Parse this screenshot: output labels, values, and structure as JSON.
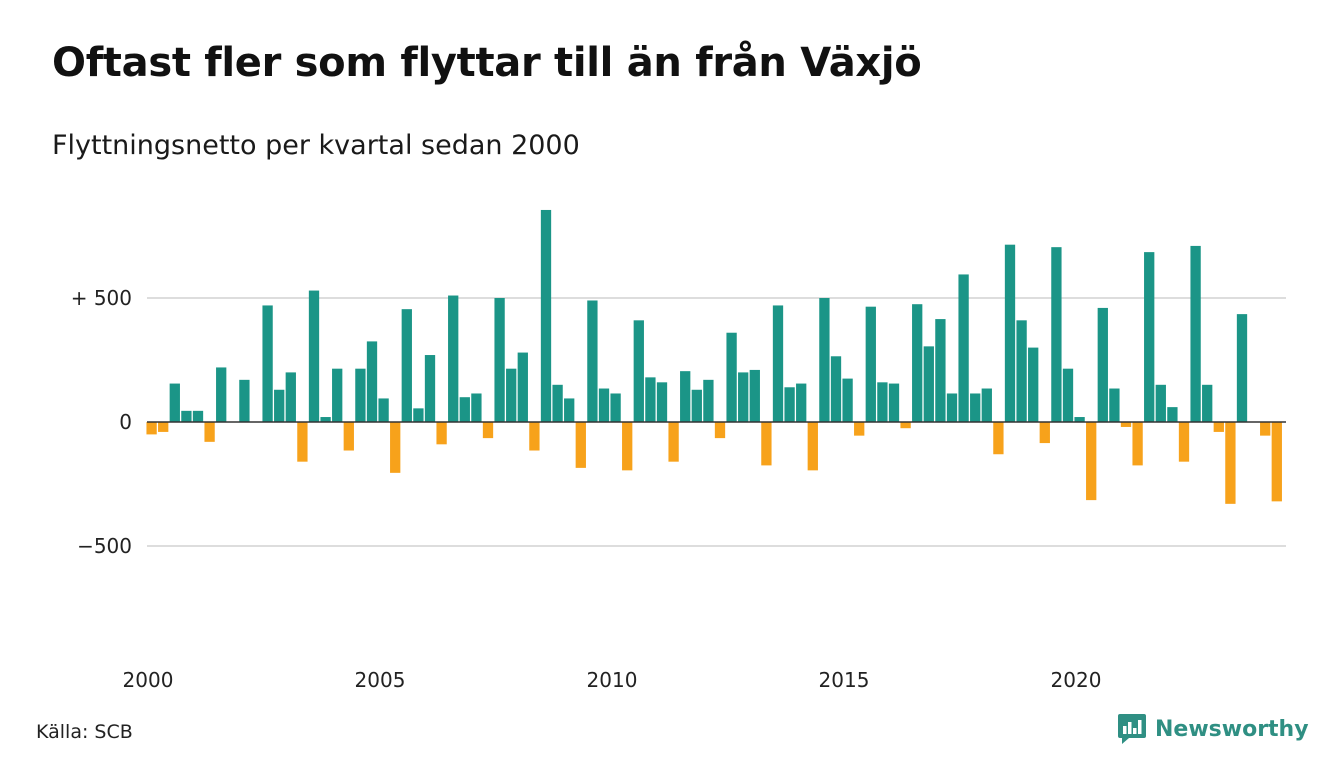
{
  "header": {
    "title": "Oftast fler som flyttar till än från Växjö",
    "subtitle": "Flyttningsnetto per kvartal sedan 2000"
  },
  "footer": {
    "source": "Källa: SCB",
    "brand": "Newsworthy",
    "brand_icon": "newsworthy-chart-bubble-icon"
  },
  "colors": {
    "positive": "#1b9587",
    "negative": "#f7a21b",
    "gridline": "#dddddd",
    "baseline": "#333333",
    "brand": "#2f8f83"
  },
  "chart_data": {
    "type": "bar",
    "title": "Oftast fler som flyttar till än från Växjö",
    "subtitle": "Flyttningsnetto per kvartal sedan 2000",
    "x_start": "2000-Q1",
    "x_tick_labels": [
      "2000",
      "2005",
      "2010",
      "2015",
      "2020"
    ],
    "y_ticks": [
      500,
      0,
      -500
    ],
    "y_tick_labels": [
      "+ 500",
      "0",
      "−500"
    ],
    "ylim": [
      -700,
      900
    ],
    "grid": true,
    "legend": "none",
    "values": [
      -50,
      -40,
      155,
      45,
      45,
      -80,
      220,
      0,
      170,
      0,
      470,
      130,
      200,
      -160,
      530,
      20,
      215,
      -115,
      215,
      325,
      95,
      -205,
      455,
      55,
      270,
      -90,
      510,
      100,
      115,
      -65,
      500,
      215,
      280,
      -115,
      855,
      150,
      95,
      -185,
      490,
      135,
      115,
      -195,
      410,
      180,
      160,
      -160,
      205,
      130,
      170,
      -65,
      360,
      200,
      210,
      -175,
      470,
      140,
      155,
      -195,
      500,
      265,
      175,
      -55,
      465,
      160,
      155,
      -25,
      475,
      305,
      415,
      115,
      595,
      115,
      135,
      -130,
      715,
      410,
      300,
      -85,
      705,
      215,
      20,
      -315,
      460,
      135,
      -20,
      -175,
      685,
      150,
      60,
      -160,
      710,
      150,
      -40,
      -330,
      435,
      0,
      -55,
      -320
    ]
  }
}
